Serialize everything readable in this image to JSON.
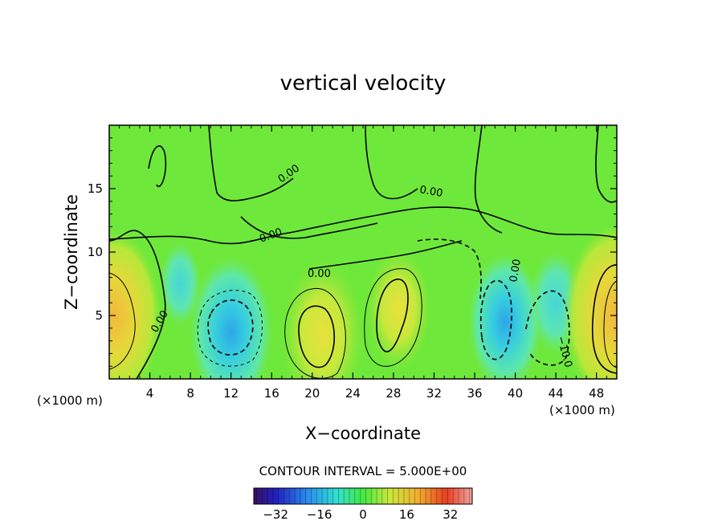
{
  "chart_data": {
    "type": "heatmap",
    "title": "vertical velocity",
    "xlabel": "X−coordinate",
    "ylabel": "Z−coordinate",
    "x_unit": "(×1000 m)",
    "y_unit": "(×1000 m)",
    "xlim": [
      0,
      50
    ],
    "ylim": [
      0,
      20
    ],
    "x_ticks": [
      4,
      8,
      12,
      16,
      20,
      24,
      28,
      32,
      36,
      40,
      44,
      48
    ],
    "y_ticks": [
      5,
      10,
      15
    ],
    "contour_interval_text": "CONTOUR INTERVAL = 5.000E+00",
    "contour_interval": 5,
    "colorbar": {
      "min": -40,
      "max": 40,
      "ticks": [
        -32,
        -16,
        0,
        16,
        32
      ],
      "tick_labels": [
        "−32",
        "−16",
        "0",
        "16",
        "32"
      ]
    },
    "contour_labels": [
      "0.00",
      "0.00",
      "0.00",
      "0.00",
      "0.00",
      "0.00",
      "−10.0"
    ],
    "features": [
      {
        "x": 0.5,
        "z": 5.0,
        "value": 16
      },
      {
        "x": 12.0,
        "z": 3.7,
        "value": -13
      },
      {
        "x": 21.0,
        "z": 3.5,
        "value": 13
      },
      {
        "x": 28.5,
        "z": 5.5,
        "value": 9
      },
      {
        "x": 39.0,
        "z": 4.5,
        "value": -11
      },
      {
        "x": 44.0,
        "z": 6.0,
        "value": -6
      },
      {
        "x": 49.8,
        "z": 5.0,
        "value": 18
      },
      {
        "x": 7.0,
        "z": 7.5,
        "value": -3
      }
    ]
  }
}
